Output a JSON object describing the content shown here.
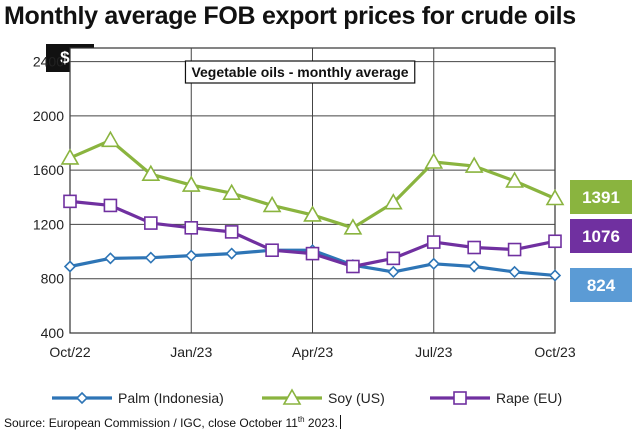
{
  "header": {
    "title": "Monthly average FOB export prices for crude oils",
    "unit": "$/t"
  },
  "source": {
    "prefix": "Source: European Commission / IGC, close October 11",
    "sup": "th",
    "suffix": " 2023."
  },
  "chart_data": {
    "type": "line",
    "subtitle": "Vegetable oils - monthly average",
    "xlabel": "",
    "ylabel": "",
    "x": [
      "Oct/22",
      "Nov/22",
      "Dec/22",
      "Jan/23",
      "Feb/23",
      "Mar/23",
      "Apr/23",
      "May/23",
      "Jun/23",
      "Jul/23",
      "Aug/23",
      "Sep/23",
      "Oct/23"
    ],
    "x_tick_labels": [
      "Oct/22",
      "Jan/23",
      "Apr/23",
      "Jul/23",
      "Oct/23"
    ],
    "ylim": [
      400,
      2500
    ],
    "y_ticks": [
      400,
      800,
      1200,
      1600,
      2000,
      2400
    ],
    "grid": true,
    "legend_position": "bottom",
    "series": [
      {
        "name": "Palm (Indonesia)",
        "color": "#2e75b6",
        "marker": "diamond",
        "values": [
          890,
          950,
          955,
          970,
          985,
          1010,
          1010,
          900,
          850,
          910,
          890,
          850,
          824
        ],
        "end_label": "824",
        "end_label_color": "#5b9bd5"
      },
      {
        "name": "Soy (US)",
        "color": "#8ab43f",
        "marker": "triangle",
        "values": [
          1690,
          1820,
          1570,
          1490,
          1430,
          1340,
          1270,
          1175,
          1360,
          1660,
          1630,
          1520,
          1391
        ],
        "end_label": "1391",
        "end_label_color": "#8ab43f"
      },
      {
        "name": "Rape (EU)",
        "color": "#7030a0",
        "marker": "square",
        "values": [
          1370,
          1340,
          1210,
          1175,
          1145,
          1010,
          985,
          890,
          950,
          1070,
          1030,
          1015,
          1076
        ],
        "end_label": "1076",
        "end_label_color": "#7030a0"
      }
    ]
  }
}
